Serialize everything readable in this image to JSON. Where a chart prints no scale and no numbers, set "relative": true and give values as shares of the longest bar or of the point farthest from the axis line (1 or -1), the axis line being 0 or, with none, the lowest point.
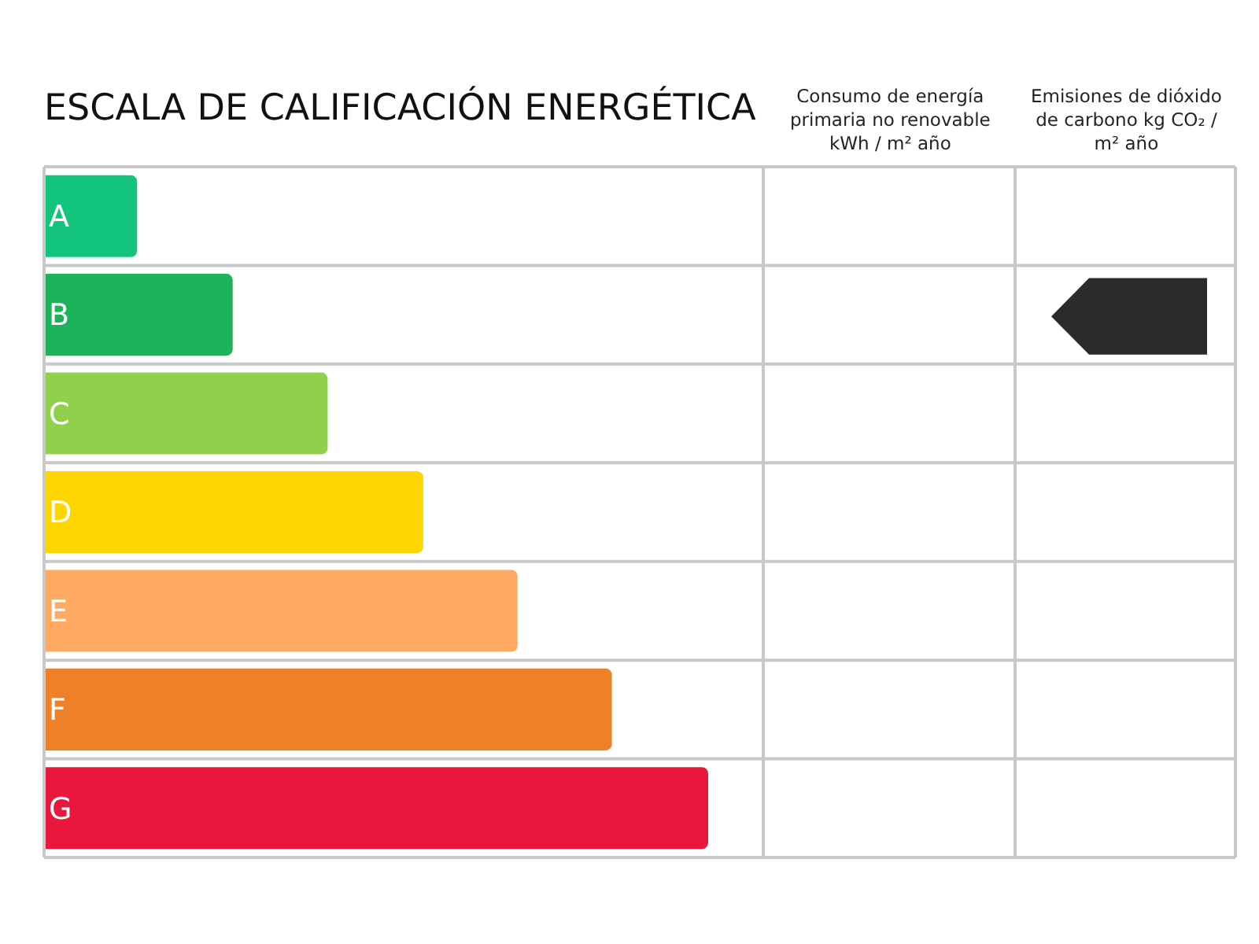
{
  "chart_data": {
    "type": "bar",
    "orientation": "horizontal",
    "relative": true,
    "title": "ESCALA DE CALIFICACIÓN ENERGÉTICA",
    "categories": [
      "A",
      "B",
      "C",
      "D",
      "E",
      "F",
      "G"
    ],
    "values": [
      0.14,
      0.284,
      0.427,
      0.571,
      0.713,
      0.855,
      1
    ],
    "colors": [
      "#13c47c",
      "#1db35a",
      "#8fd14a",
      "#ffd600",
      "#ffa962",
      "#ee8127",
      "#ea173d"
    ],
    "annotations": [
      "Consumo de energía primaria no renovable kWh / m² año",
      "Emisiones de dióxido de carbono kg CO₂ / m² año"
    ]
  }
}
